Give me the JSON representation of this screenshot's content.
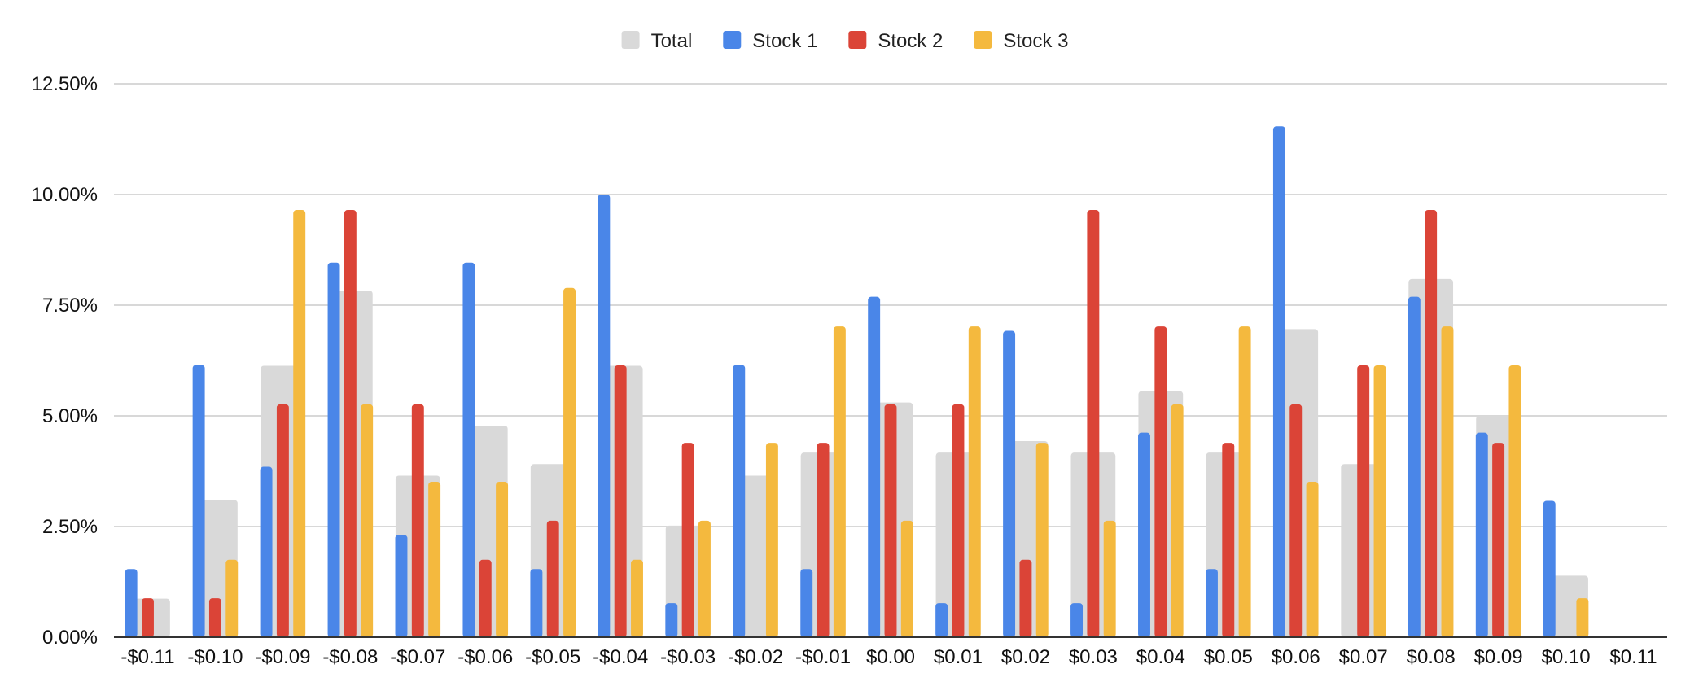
{
  "chart_data": {
    "type": "bar",
    "title": "",
    "xlabel": "",
    "ylabel": "",
    "categories": [
      "-$0.11",
      "-$0.10",
      "-$0.09",
      "-$0.08",
      "-$0.07",
      "-$0.06",
      "-$0.05",
      "-$0.04",
      "-$0.03",
      "-$0.02",
      "-$0.01",
      "$0.00",
      "$0.01",
      "$0.02",
      "$0.03",
      "$0.04",
      "$0.05",
      "$0.06",
      "$0.07",
      "$0.08",
      "$0.09",
      "$0.10",
      "$0.11"
    ],
    "ylim": [
      0,
      12.5
    ],
    "yticks": [
      0,
      2.5,
      5,
      7.5,
      10,
      12.5
    ],
    "ytick_labels": [
      "0.00%",
      "2.50%",
      "5.00%",
      "7.50%",
      "10.00%",
      "12.50%"
    ],
    "grid": true,
    "legend_position": "top-center",
    "series": [
      {
        "name": "Total",
        "color": "#d9d9d9",
        "values": [
          0.87,
          3.1,
          6.13,
          7.83,
          3.65,
          4.78,
          3.91,
          6.13,
          2.52,
          3.65,
          4.17,
          5.3,
          4.17,
          4.43,
          4.17,
          5.56,
          4.17,
          6.96,
          3.91,
          8.09,
          5.0,
          1.39,
          0.0
        ]
      },
      {
        "name": "Stock 1",
        "color": "#4a86e8",
        "values": [
          1.54,
          6.15,
          3.85,
          8.46,
          2.31,
          8.46,
          1.54,
          10.0,
          0.77,
          6.15,
          1.54,
          7.69,
          0.77,
          6.92,
          0.77,
          4.62,
          1.54,
          11.54,
          0.0,
          7.69,
          4.62,
          3.08,
          0.0
        ]
      },
      {
        "name": "Stock 2",
        "color": "#db4437",
        "values": [
          0.88,
          0.88,
          5.26,
          9.65,
          5.26,
          1.75,
          2.63,
          6.14,
          4.39,
          0.0,
          4.39,
          5.26,
          5.26,
          1.75,
          9.65,
          7.02,
          4.39,
          5.26,
          6.14,
          9.65,
          4.39,
          0.0,
          0.0
        ]
      },
      {
        "name": "Stock 3",
        "color": "#f4b93e",
        "values": [
          0.0,
          1.75,
          9.65,
          5.26,
          3.51,
          3.51,
          7.89,
          1.75,
          2.63,
          4.39,
          7.02,
          2.63,
          7.02,
          4.39,
          2.63,
          5.26,
          7.02,
          3.51,
          6.14,
          7.02,
          6.14,
          0.88,
          0.0
        ]
      }
    ]
  }
}
